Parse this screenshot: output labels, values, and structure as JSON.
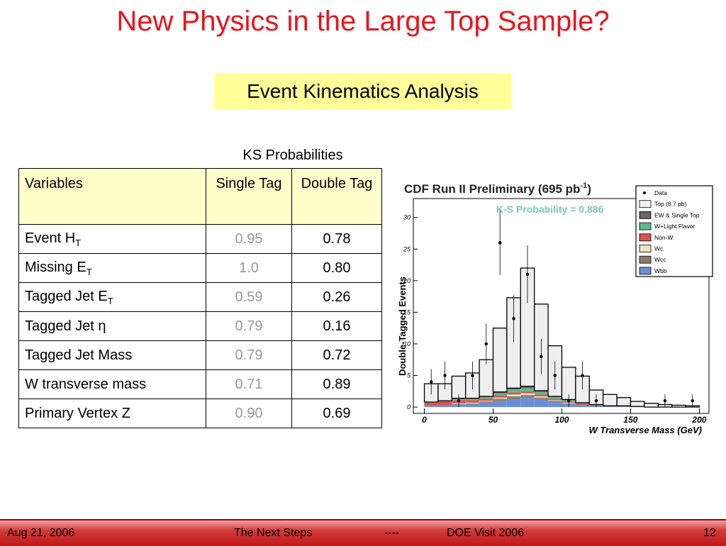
{
  "title": "New Physics in the Large Top Sample?",
  "subtitle": "Event Kinematics Analysis",
  "table": {
    "caption": "KS Probabilities",
    "header": [
      "Variables",
      "Single Tag",
      "Double Tag"
    ],
    "rows": [
      [
        {
          "text": "Event H",
          "sub": "T"
        },
        "0.95",
        "0.78"
      ],
      [
        {
          "text": "Missing E",
          "sub": "T"
        },
        "1.0",
        "0.80"
      ],
      [
        {
          "text": "Tagged Jet E",
          "sub": "T"
        },
        "0.59",
        "0.26"
      ],
      [
        {
          "text": "Tagged Jet η"
        },
        "0.79",
        "0.16"
      ],
      [
        {
          "text": "Tagged Jet Mass"
        },
        "0.79",
        "0.72"
      ],
      [
        {
          "text": "W transverse mass"
        },
        "0.71",
        "0.89"
      ],
      [
        {
          "text": "Primary Vertex Z"
        },
        "0.90",
        "0.69"
      ]
    ]
  },
  "plot": {
    "type": "histogram",
    "title": "CDF Run II Preliminary (695 pb",
    "title_sup": "-1",
    "title_end": ")",
    "annotation": "K-S Probability = 0.886",
    "x_label": "W Transverse Mass (GeV)",
    "y_label": "Double-Tagged Events",
    "xlim": [
      -8,
      207
    ],
    "ylim": [
      -1,
      33
    ],
    "xticks": [
      0,
      50,
      100,
      150,
      200
    ],
    "yticks": [
      0,
      5,
      10,
      15,
      20,
      25,
      30
    ],
    "bins": [
      0,
      10,
      20,
      30,
      40,
      50,
      60,
      70,
      80,
      90,
      100,
      110,
      120,
      130,
      140,
      150,
      160,
      170,
      180,
      190,
      200
    ],
    "series": [
      {
        "name": "Wbb",
        "color": "#6b8fd6",
        "values": [
          0.2,
          0.3,
          0.4,
          0.5,
          0.7,
          1.0,
          1.3,
          1.5,
          1.2,
          0.8,
          0.5,
          0.3,
          0.2,
          0.1,
          0.1,
          0,
          0,
          0,
          0,
          0
        ]
      },
      {
        "name": "Wcc",
        "color": "#8a7e6a",
        "values": [
          0,
          0,
          0.1,
          0.1,
          0.2,
          0.3,
          0.4,
          0.4,
          0.3,
          0.2,
          0.1,
          0.1,
          0,
          0,
          0,
          0,
          0,
          0,
          0,
          0
        ]
      },
      {
        "name": "Wc",
        "color": "#e6e2c4",
        "values": [
          0,
          0,
          0.1,
          0.1,
          0.1,
          0.2,
          0.3,
          0.3,
          0.2,
          0.1,
          0.1,
          0,
          0,
          0,
          0,
          0,
          0,
          0,
          0,
          0
        ]
      },
      {
        "name": "Non-W",
        "color": "#d9534f",
        "values": [
          0.5,
          0.6,
          0.5,
          0.4,
          0.3,
          0.3,
          0.3,
          0.3,
          0.3,
          0.2,
          0.2,
          0.2,
          0.1,
          0.1,
          0.1,
          0.1,
          0,
          0,
          0,
          0
        ]
      },
      {
        "name": "W+Light Flavor",
        "color": "#5fb88a",
        "values": [
          0.1,
          0.1,
          0.2,
          0.2,
          0.3,
          0.4,
          0.5,
          0.5,
          0.4,
          0.3,
          0.2,
          0.1,
          0.1,
          0,
          0,
          0,
          0,
          0,
          0,
          0
        ]
      },
      {
        "name": "EW & Single Top",
        "color": "#666666",
        "values": [
          0,
          0,
          0.1,
          0.1,
          0.1,
          0.2,
          0.2,
          0.3,
          0.2,
          0.1,
          0.1,
          0,
          0,
          0,
          0,
          0,
          0,
          0,
          0,
          0
        ]
      },
      {
        "name": "Top (8.7 pb)",
        "color": "#efefef",
        "values": [
          2.9,
          2.7,
          3.5,
          4.0,
          5.8,
          10.1,
          14.3,
          18.7,
          13.7,
          8.0,
          5.1,
          4.2,
          2.3,
          1.8,
          1.3,
          0.8,
          0.6,
          0.4,
          0.3,
          0.2
        ]
      }
    ],
    "data": {
      "name": "Data",
      "color": "#000000",
      "x": [
        5,
        15,
        25,
        35,
        45,
        55,
        65,
        75,
        85,
        95,
        105,
        115,
        125,
        135,
        145,
        155,
        165,
        175,
        185,
        195
      ],
      "values": [
        4,
        5,
        1,
        5,
        10,
        26,
        14,
        21,
        8,
        5,
        1,
        5,
        1,
        null,
        null,
        null,
        null,
        1,
        null,
        1
      ],
      "errors": [
        2,
        2.2,
        1,
        2.2,
        3.2,
        5.1,
        3.7,
        4.6,
        2.8,
        2.2,
        1,
        2.2,
        1,
        null,
        null,
        null,
        null,
        1,
        null,
        1
      ]
    }
  },
  "footer": {
    "date": "Aug 21, 2006",
    "topic": "The Next Steps",
    "separator": "----",
    "event": "DOE Visit 2006",
    "page": "12"
  }
}
